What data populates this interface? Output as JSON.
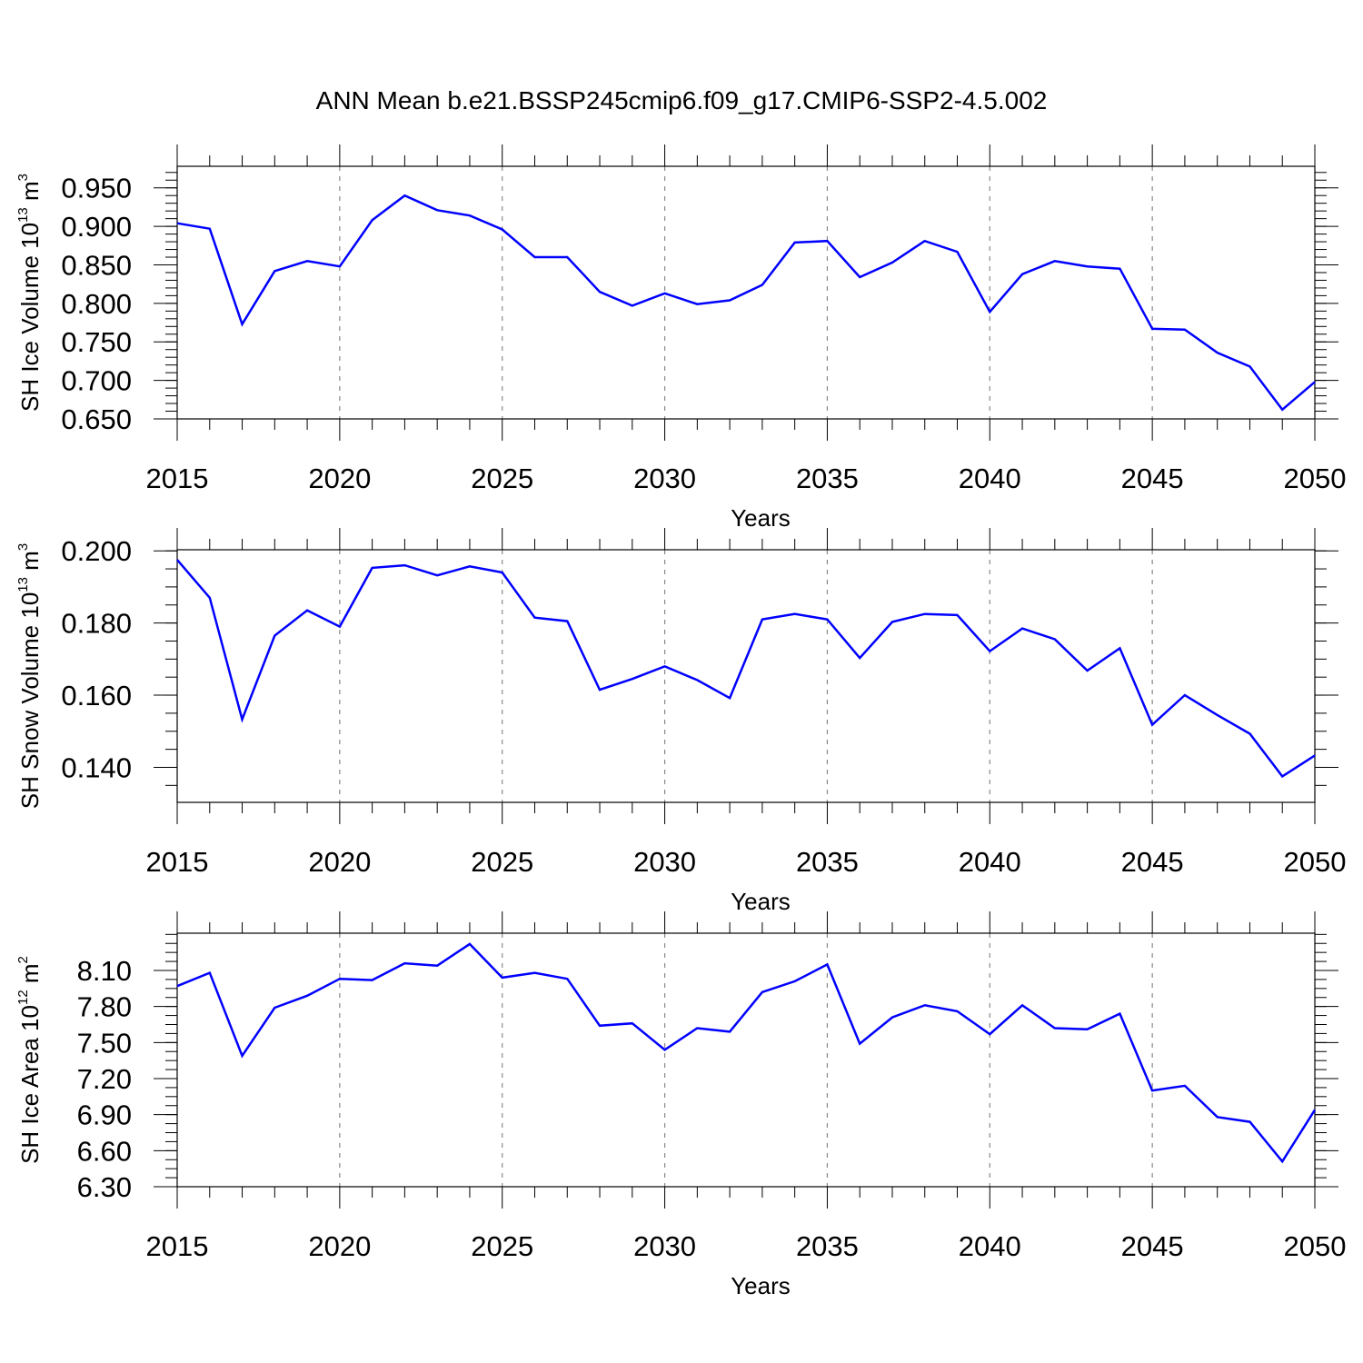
{
  "title": "ANN Mean b.e21.BSSP245cmip6.f09_g17.CMIP6-SSP2-4.5.002",
  "colors": {
    "series": "#0000ff",
    "grid": "#888888",
    "axes": "#000000"
  },
  "chart_data": [
    {
      "type": "line",
      "title": "ANN Mean b.e21.BSSP245cmip6.f09_g17.CMIP6-SSP2-4.5.002",
      "ylabel": {
        "text": "SH Ice Volume 10",
        "sup": "13",
        "unit": " m",
        "unit_sup": "3"
      },
      "xlabel": "Years",
      "xlim": [
        2015,
        2050
      ],
      "ylim": [
        0.65,
        0.978
      ],
      "x_ticks": [
        "2015",
        "2020",
        "2025",
        "2030",
        "2035",
        "2040",
        "2045",
        "2050"
      ],
      "y_ticks": [
        "0.650",
        "0.700",
        "0.750",
        "0.800",
        "0.850",
        "0.900",
        "0.950"
      ],
      "grid": "vertical-dashed",
      "x": [
        2015,
        2016,
        2017,
        2018,
        2019,
        2020,
        2021,
        2022,
        2023,
        2024,
        2025,
        2026,
        2027,
        2028,
        2029,
        2030,
        2031,
        2032,
        2033,
        2034,
        2035,
        2036,
        2037,
        2038,
        2039,
        2040,
        2041,
        2042,
        2043,
        2044,
        2045,
        2046,
        2047,
        2048,
        2049,
        2050
      ],
      "values": [
        0.904,
        0.897,
        0.773,
        0.842,
        0.855,
        0.848,
        0.908,
        0.94,
        0.921,
        0.914,
        0.896,
        0.86,
        0.86,
        0.815,
        0.797,
        0.813,
        0.799,
        0.804,
        0.824,
        0.879,
        0.881,
        0.834,
        0.853,
        0.881,
        0.867,
        0.789,
        0.838,
        0.855,
        0.848,
        0.845,
        0.767,
        0.766,
        0.736,
        0.718,
        0.662,
        0.698
      ]
    },
    {
      "type": "line",
      "ylabel": {
        "text": "SH Snow Volume 10",
        "sup": "13",
        "unit": " m",
        "unit_sup": "3"
      },
      "xlabel": "Years",
      "xlim": [
        2015,
        2050
      ],
      "ylim": [
        0.1303,
        0.2003
      ],
      "x_ticks": [
        "2015",
        "2020",
        "2025",
        "2030",
        "2035",
        "2040",
        "2045",
        "2050"
      ],
      "y_ticks": [
        "0.140",
        "0.160",
        "0.180",
        "0.200"
      ],
      "grid": "vertical-dashed",
      "x": [
        2015,
        2016,
        2017,
        2018,
        2019,
        2020,
        2021,
        2022,
        2023,
        2024,
        2025,
        2026,
        2027,
        2028,
        2029,
        2030,
        2031,
        2032,
        2033,
        2034,
        2035,
        2036,
        2037,
        2038,
        2039,
        2040,
        2041,
        2042,
        2043,
        2044,
        2045,
        2046,
        2047,
        2048,
        2049,
        2050
      ],
      "values": [
        0.1975,
        0.187,
        0.1533,
        0.1765,
        0.1835,
        0.179,
        0.1953,
        0.196,
        0.1932,
        0.1957,
        0.194,
        0.1815,
        0.1805,
        0.1615,
        0.1645,
        0.168,
        0.1642,
        0.1592,
        0.181,
        0.1825,
        0.181,
        0.1703,
        0.1803,
        0.1825,
        0.1822,
        0.1722,
        0.1785,
        0.1755,
        0.1668,
        0.173,
        0.1518,
        0.16,
        0.1545,
        0.1493,
        0.1375,
        0.1433
      ]
    },
    {
      "type": "line",
      "ylabel": {
        "text": "SH Ice Area 10",
        "sup": "12",
        "unit": " m",
        "unit_sup": "2"
      },
      "xlabel": "Years",
      "xlim": [
        2015,
        2050
      ],
      "ylim": [
        6.3,
        8.41
      ],
      "x_ticks": [
        "2015",
        "2020",
        "2025",
        "2030",
        "2035",
        "2040",
        "2045",
        "2050"
      ],
      "y_ticks": [
        "6.30",
        "6.60",
        "6.90",
        "7.20",
        "7.50",
        "7.80",
        "8.10"
      ],
      "grid": "vertical-dashed",
      "x": [
        2015,
        2016,
        2017,
        2018,
        2019,
        2020,
        2021,
        2022,
        2023,
        2024,
        2025,
        2026,
        2027,
        2028,
        2029,
        2030,
        2031,
        2032,
        2033,
        2034,
        2035,
        2036,
        2037,
        2038,
        2039,
        2040,
        2041,
        2042,
        2043,
        2044,
        2045,
        2046,
        2047,
        2048,
        2049,
        2050
      ],
      "values": [
        7.97,
        8.08,
        7.39,
        7.79,
        7.89,
        8.03,
        8.02,
        8.16,
        8.14,
        8.32,
        8.04,
        8.08,
        8.03,
        7.64,
        7.66,
        7.44,
        7.62,
        7.59,
        7.92,
        8.01,
        8.15,
        7.49,
        7.71,
        7.81,
        7.76,
        7.57,
        7.81,
        7.62,
        7.61,
        7.74,
        7.1,
        7.14,
        6.88,
        6.84,
        6.51,
        6.94
      ]
    }
  ]
}
